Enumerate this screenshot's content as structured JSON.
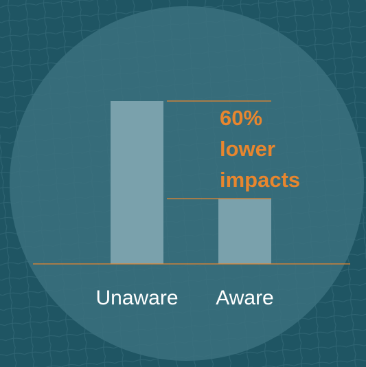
{
  "chart_data": {
    "type": "bar",
    "categories": [
      "Unaware",
      "Aware"
    ],
    "values": [
      100,
      40
    ],
    "ylim": [
      0,
      100
    ],
    "title": "",
    "xlabel": "",
    "ylabel": "",
    "grid": false,
    "annotation": {
      "lines": [
        "60%",
        "lower",
        "impacts"
      ]
    }
  },
  "colors": {
    "background": "#1f5563",
    "circle": "#3a6f7d",
    "bar": "#7aa1ac",
    "accent": "#e8862e",
    "text": "#ffffff"
  }
}
